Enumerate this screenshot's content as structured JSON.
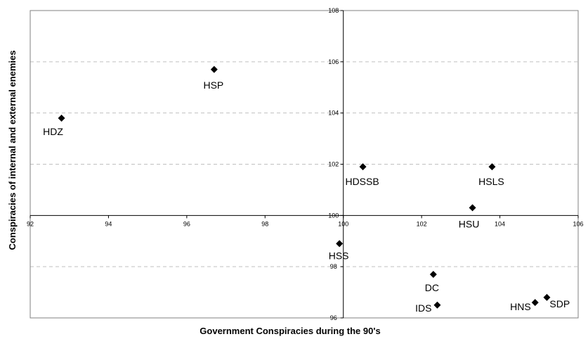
{
  "chart_data": {
    "type": "scatter",
    "title": "",
    "xlabel": "Government Conspiracies during the 90's",
    "ylabel": "Conspiracies of internal and external enemies",
    "xlim": [
      92,
      106
    ],
    "ylim": [
      96,
      108
    ],
    "x_ticks": [
      92,
      94,
      96,
      98,
      100,
      102,
      104,
      106
    ],
    "y_ticks": [
      96,
      98,
      100,
      102,
      104,
      106,
      108
    ],
    "axis_cross": {
      "x": 100,
      "y": 100
    },
    "grid": "horizontal-dashed",
    "legend": "none",
    "marker": "diamond",
    "marker_color": "#000000",
    "grid_color": "#c0c0c0",
    "points": [
      {
        "label": "HDZ",
        "x": 92.8,
        "y": 103.8
      },
      {
        "label": "HSP",
        "x": 96.7,
        "y": 105.7
      },
      {
        "label": "HDSSB",
        "x": 100.5,
        "y": 101.9
      },
      {
        "label": "HSLS",
        "x": 103.8,
        "y": 101.9
      },
      {
        "label": "HSU",
        "x": 103.3,
        "y": 100.3
      },
      {
        "label": "HSS",
        "x": 99.9,
        "y": 98.9
      },
      {
        "label": "DC",
        "x": 102.3,
        "y": 97.7
      },
      {
        "label": "IDS",
        "x": 102.4,
        "y": 96.5
      },
      {
        "label": "HNS",
        "x": 104.9,
        "y": 96.6
      },
      {
        "label": "SDP",
        "x": 105.2,
        "y": 96.8
      }
    ]
  }
}
